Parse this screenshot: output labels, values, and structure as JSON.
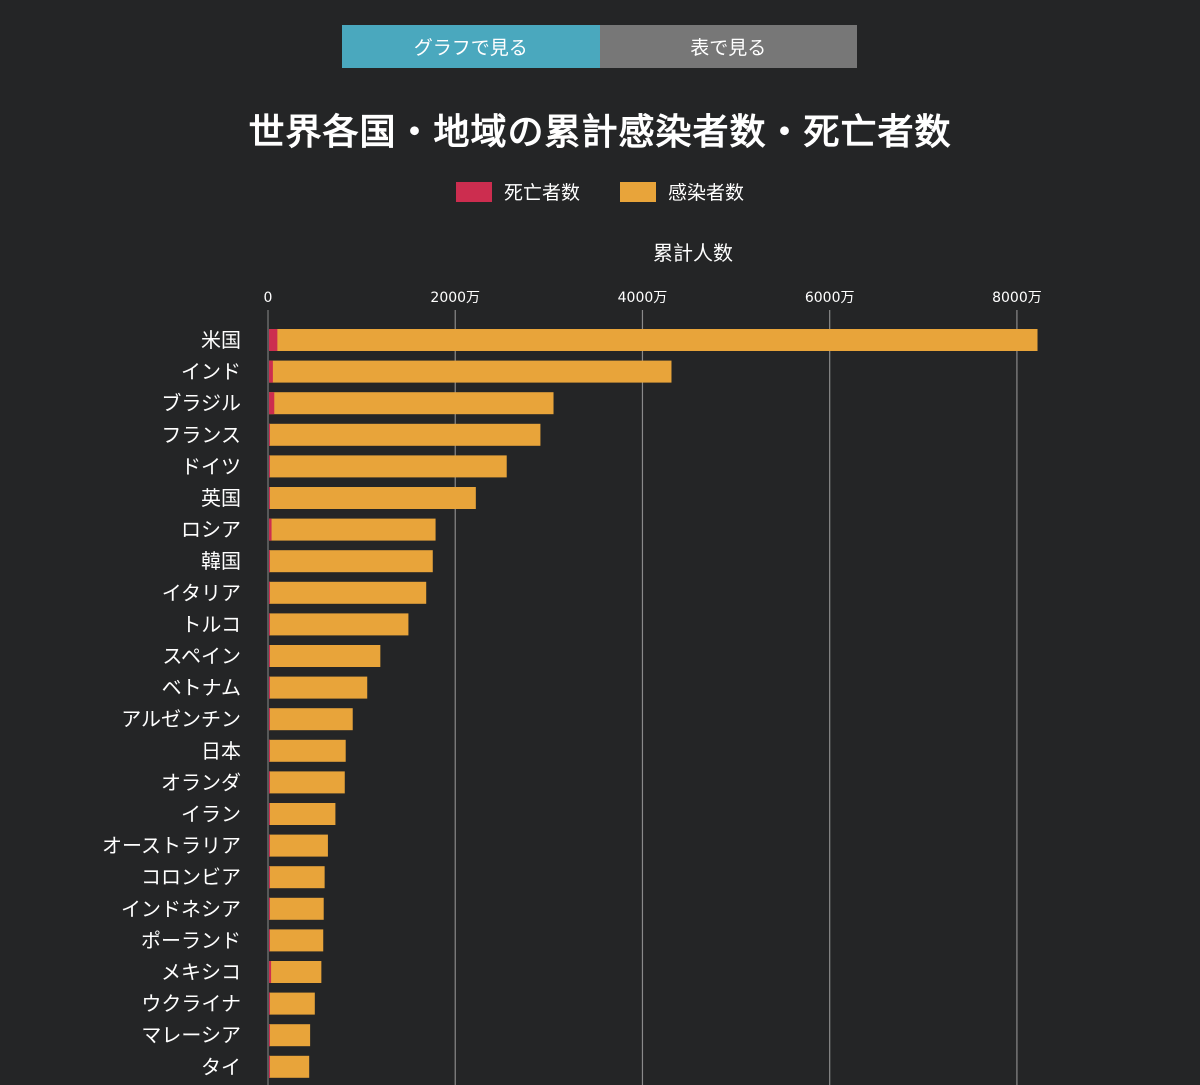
{
  "tabs": [
    {
      "label": "グラフで見る",
      "active": true
    },
    {
      "label": "表で見る",
      "active": false
    }
  ],
  "colors": {
    "background": "#242526",
    "deaths": "#cc2d4f",
    "cases": "#e8a43a",
    "tab_active": "#4aa8be",
    "tab_inactive": "#777777",
    "grid": "#8a8a8a"
  },
  "chart_data": {
    "type": "bar",
    "orientation": "horizontal",
    "title": "世界各国・地域の累計感染者数・死亡者数",
    "xlabel": "累計人数",
    "xlim": [
      0,
      8300
    ],
    "x_unit": "万",
    "ticks": [
      {
        "value": 0,
        "label": "0"
      },
      {
        "value": 2000,
        "label": "2000万"
      },
      {
        "value": 4000,
        "label": "4000万"
      },
      {
        "value": 6000,
        "label": "6000万"
      },
      {
        "value": 8000,
        "label": "8000万"
      }
    ],
    "grid": true,
    "legend_position": "top",
    "categories": [
      "米国",
      "インド",
      "ブラジル",
      "フランス",
      "ドイツ",
      "英国",
      "ロシア",
      "韓国",
      "イタリア",
      "トルコ",
      "スペイン",
      "ベトナム",
      "アルゼンチン",
      "日本",
      "オランダ",
      "イラン",
      "オーストラリア",
      "コロンビア",
      "インドネシア",
      "ポーランド",
      "メキシコ",
      "ウクライナ",
      "マレーシア",
      "タイ"
    ],
    "series": [
      {
        "name": "死亡者数",
        "color": "#cc2d4f",
        "values": [
          100,
          52,
          67,
          15,
          14,
          18,
          38,
          2.4,
          17,
          10,
          11,
          4.3,
          13,
          3,
          2.2,
          14,
          1.1,
          14,
          16,
          12,
          33,
          11,
          3.6,
          3
        ]
      },
      {
        "name": "感染者数",
        "color": "#e8a43a",
        "values": [
          8220,
          4310,
          3050,
          2910,
          2550,
          2220,
          1790,
          1760,
          1690,
          1500,
          1200,
          1060,
          905,
          830,
          820,
          720,
          640,
          605,
          595,
          590,
          570,
          500,
          450,
          440
        ]
      }
    ]
  }
}
